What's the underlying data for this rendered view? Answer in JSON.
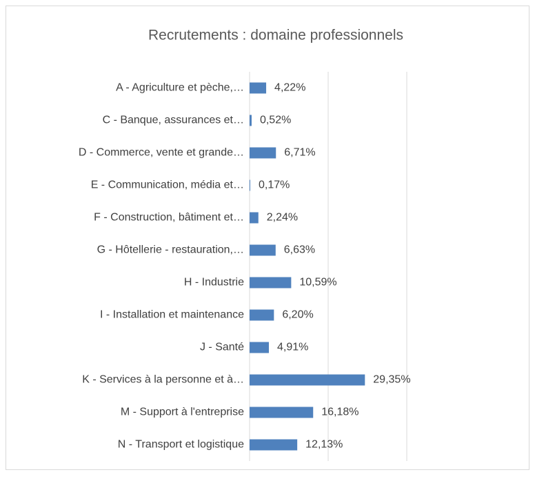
{
  "chart_data": {
    "type": "bar",
    "orientation": "horizontal",
    "title": "Recrutements : domaine professionnels",
    "categories": [
      "A - Agriculture et pèche,…",
      "C - Banque, assurances et…",
      "D - Commerce, vente et grande…",
      "E - Communication, média et…",
      "F - Construction, bâtiment et…",
      "G - Hôtellerie - restauration,…",
      "H - Industrie",
      "I - Installation et maintenance",
      "J - Santé",
      "K - Services à la personne et à…",
      "M - Support à l'entreprise",
      "N - Transport et logistique"
    ],
    "values": [
      4.22,
      0.52,
      6.71,
      0.17,
      2.24,
      6.63,
      10.59,
      6.2,
      4.91,
      29.35,
      16.18,
      12.13
    ],
    "value_labels": [
      "4,22%",
      "0,52%",
      "6,71%",
      "0,17%",
      "2,24%",
      "6,63%",
      "10,59%",
      "6,20%",
      "4,91%",
      "29,35%",
      "16,18%",
      "12,13%"
    ],
    "color": "#4f81bd",
    "xlim": [
      0,
      40
    ],
    "xticks": [
      0,
      20,
      40
    ],
    "grid": true
  }
}
